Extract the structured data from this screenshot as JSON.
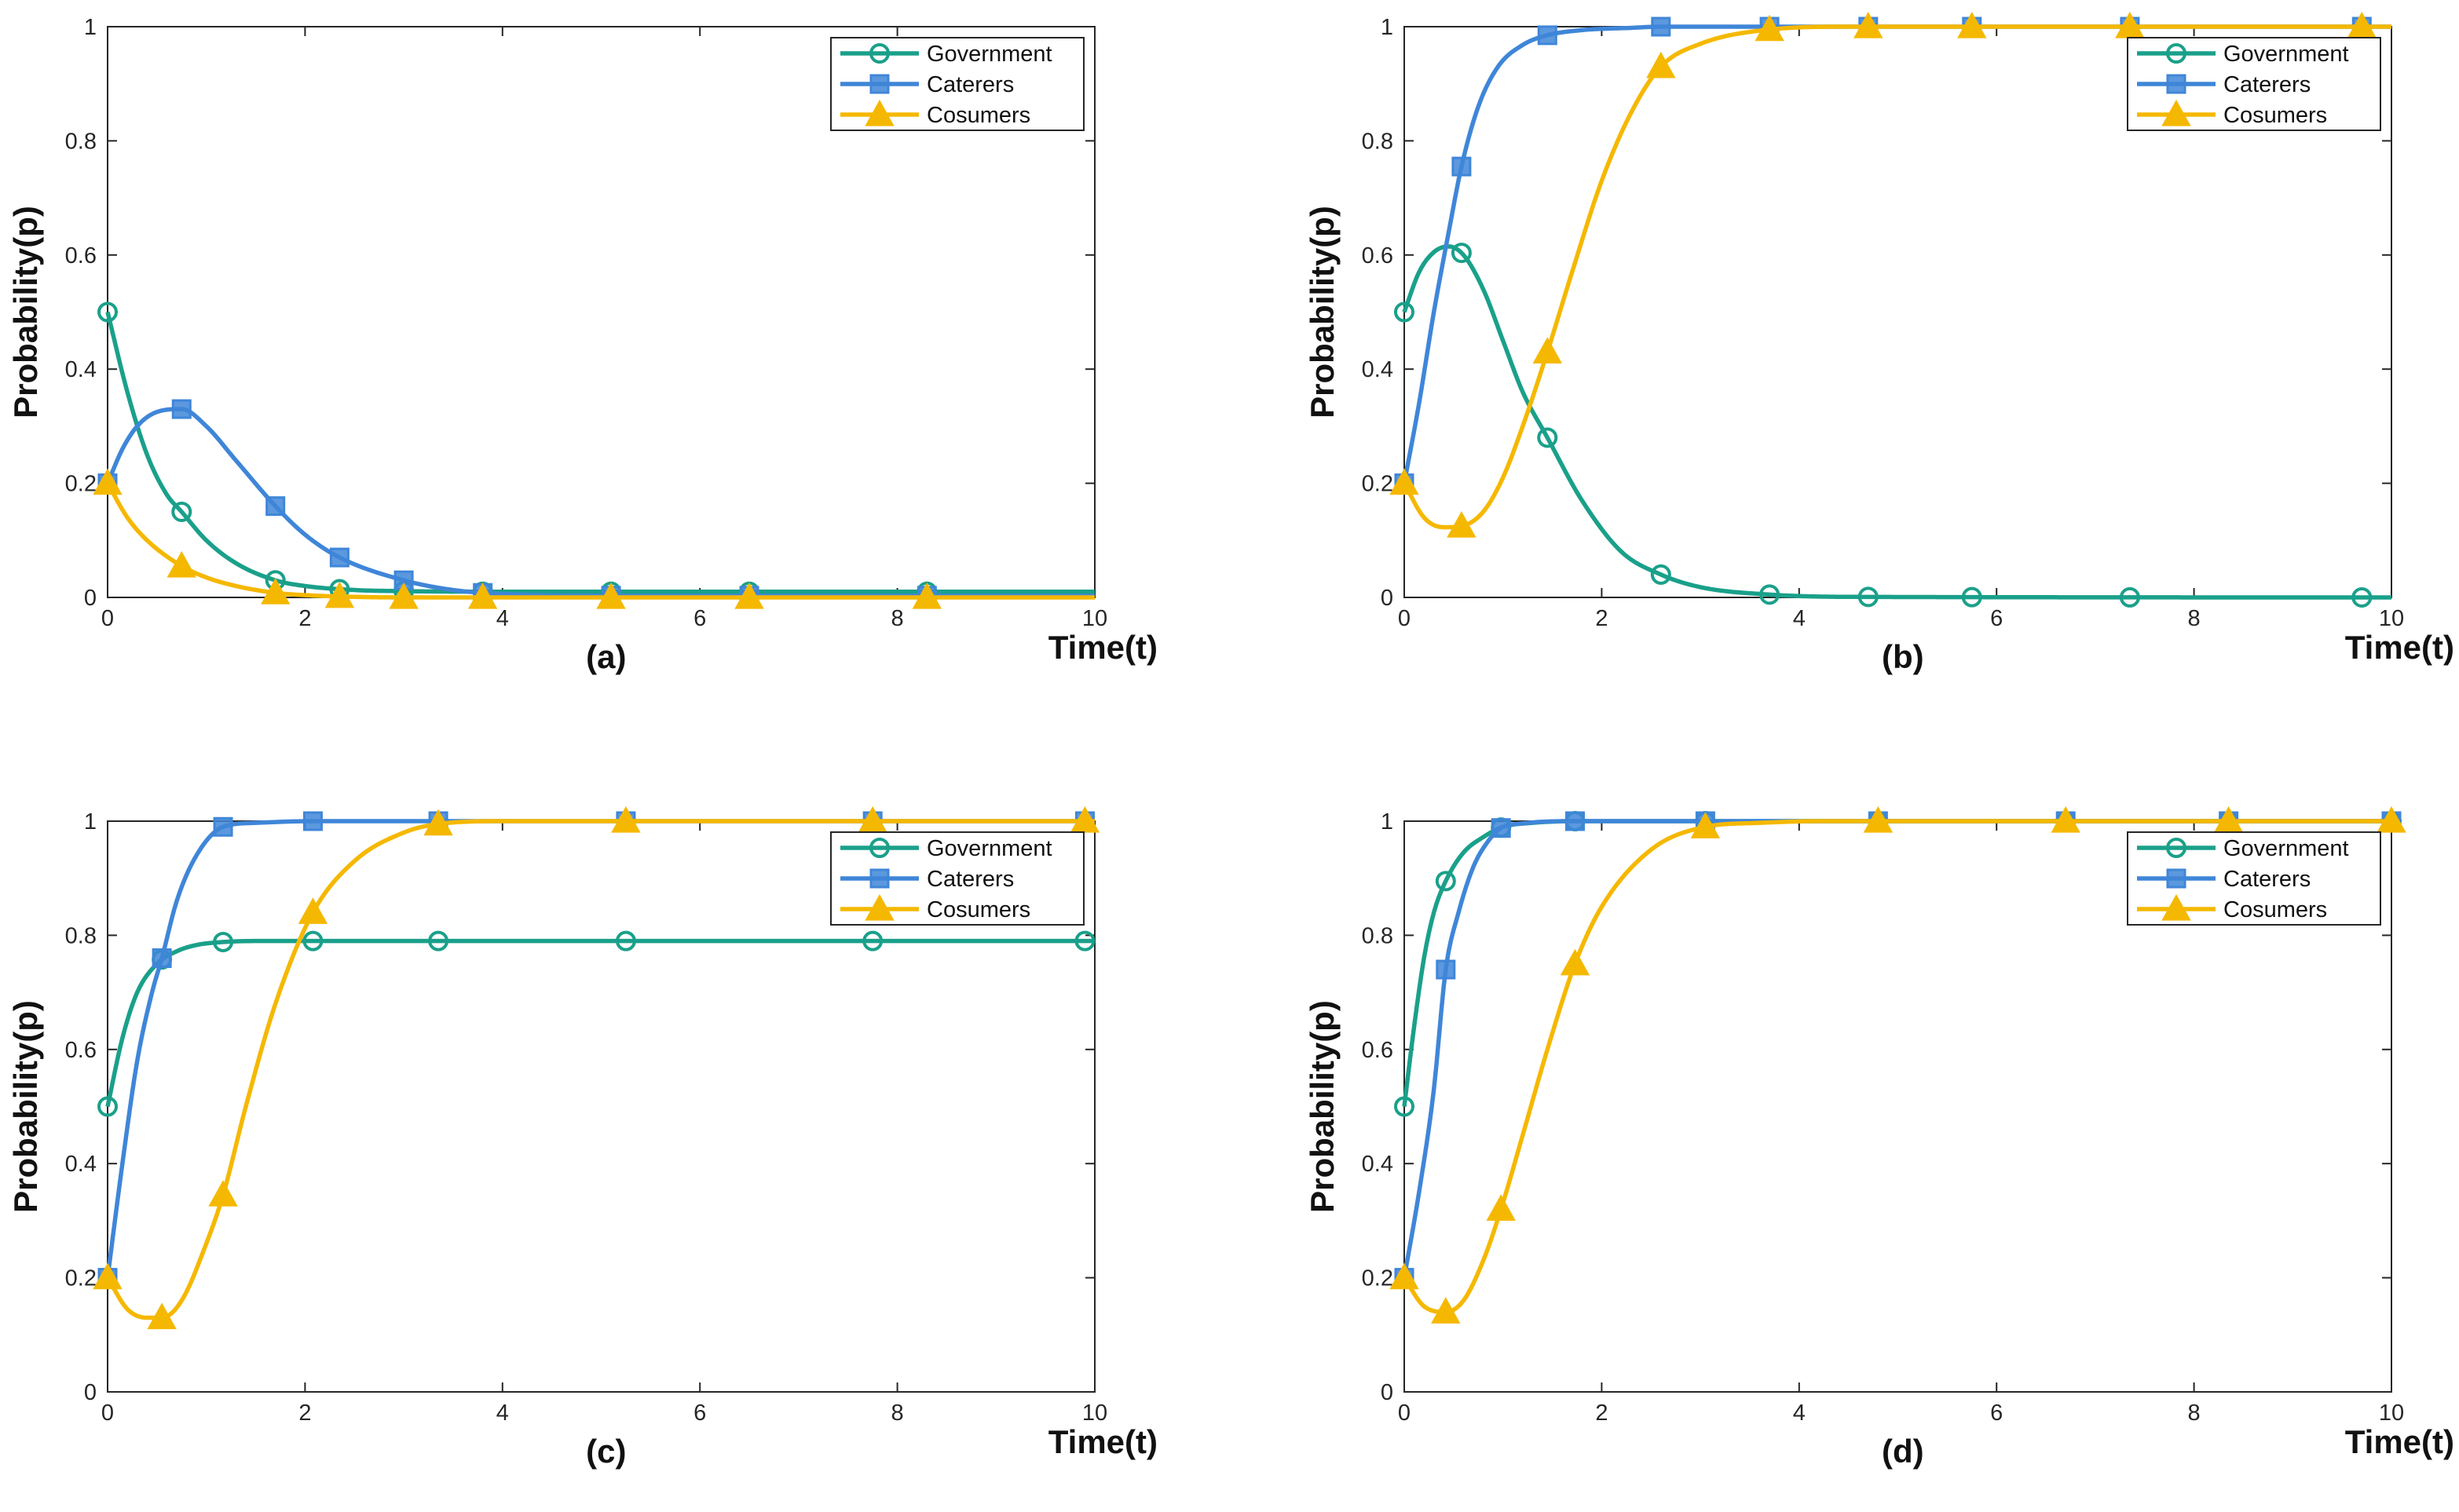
{
  "figure": {
    "caption_style": "four-panel replicator dynamics"
  },
  "colors": {
    "government": "#1aa08a",
    "caterers": "#3f86d8",
    "consumers": "#f5b800",
    "axis": "#262626"
  },
  "chart_data": [
    {
      "panel_label": "(a)",
      "type": "line",
      "xlabel": "Time(t)",
      "ylabel": "Probability(p)",
      "xlim": [
        0,
        10
      ],
      "ylim": [
        0,
        1
      ],
      "xticks": [
        "0",
        "2",
        "4",
        "6",
        "8",
        "10"
      ],
      "yticks": [
        "0",
        "0.2",
        "0.4",
        "0.6",
        "0.8",
        "1"
      ],
      "legend": [
        "Government",
        "Caterers",
        "Cosumers"
      ],
      "legend_position": "top-right",
      "series": [
        {
          "name": "Government",
          "marker": "circle",
          "color": "#1aa08a",
          "x": [
            0,
            0.2,
            0.4,
            0.6,
            0.75,
            1.0,
            1.3,
            1.7,
            2.0,
            2.5,
            3.0,
            4.0,
            5.0,
            6.5,
            8.3,
            10
          ],
          "y": [
            0.5,
            0.36,
            0.25,
            0.18,
            0.15,
            0.1,
            0.06,
            0.03,
            0.02,
            0.013,
            0.011,
            0.01,
            0.01,
            0.01,
            0.01,
            0.01
          ],
          "marker_x": [
            0,
            0.75,
            1.7,
            2.35,
            3.0,
            3.8,
            5.1,
            6.5,
            8.3
          ]
        },
        {
          "name": "Caterers",
          "marker": "square",
          "color": "#3f86d8",
          "x": [
            0,
            0.15,
            0.3,
            0.5,
            0.75,
            1.0,
            1.3,
            1.7,
            2.0,
            2.35,
            3.0,
            3.5,
            4.0,
            5.0,
            10
          ],
          "y": [
            0.2,
            0.26,
            0.3,
            0.325,
            0.33,
            0.3,
            0.24,
            0.16,
            0.11,
            0.07,
            0.03,
            0.013,
            0.006,
            0.003,
            0.003
          ],
          "marker_x": [
            0,
            0.75,
            1.7,
            2.35,
            3.0,
            3.8,
            5.1,
            6.5,
            8.3
          ]
        },
        {
          "name": "Cosumers",
          "marker": "triangle",
          "color": "#f5b800",
          "x": [
            0,
            0.2,
            0.4,
            0.75,
            1.0,
            1.3,
            1.7,
            2.0,
            2.5,
            3.0,
            10
          ],
          "y": [
            0.2,
            0.14,
            0.1,
            0.055,
            0.035,
            0.02,
            0.008,
            0.004,
            0.001,
            0.0,
            0.0
          ],
          "marker_x": [
            0,
            0.75,
            1.7,
            2.35,
            3.0,
            3.8,
            5.1,
            6.5,
            8.3
          ]
        }
      ]
    },
    {
      "panel_label": "(b)",
      "type": "line",
      "xlabel": "Time(t)",
      "ylabel": "Probability(p)",
      "xlim": [
        0,
        10
      ],
      "ylim": [
        0,
        1
      ],
      "xticks": [
        "0",
        "2",
        "4",
        "6",
        "8",
        "10"
      ],
      "yticks": [
        "0",
        "0.2",
        "0.4",
        "0.6",
        "0.8",
        "1"
      ],
      "legend": [
        "Government",
        "Caterers",
        "Cosumers"
      ],
      "legend_position": "top-right",
      "series": [
        {
          "name": "Government",
          "marker": "circle",
          "color": "#1aa08a",
          "x": [
            0,
            0.15,
            0.3,
            0.45,
            0.6,
            0.8,
            1.0,
            1.2,
            1.45,
            1.8,
            2.2,
            2.6,
            3.0,
            3.7,
            4.5,
            10
          ],
          "y": [
            0.5,
            0.57,
            0.605,
            0.615,
            0.6,
            0.54,
            0.45,
            0.36,
            0.28,
            0.17,
            0.08,
            0.04,
            0.018,
            0.005,
            0.001,
            0.0
          ],
          "marker_x": [
            0,
            0.58,
            1.45,
            2.6,
            3.7,
            4.7,
            5.75,
            7.35,
            9.7
          ]
        },
        {
          "name": "Caterers",
          "marker": "square",
          "color": "#3f86d8",
          "x": [
            0,
            0.15,
            0.3,
            0.45,
            0.58,
            0.75,
            0.95,
            1.2,
            1.45,
            1.8,
            2.3,
            2.6,
            10
          ],
          "y": [
            0.2,
            0.34,
            0.5,
            0.64,
            0.755,
            0.86,
            0.93,
            0.968,
            0.985,
            0.994,
            0.998,
            1.0,
            1.0
          ],
          "marker_x": [
            0,
            0.58,
            1.45,
            2.6,
            3.7,
            4.7,
            5.75,
            7.35,
            9.7
          ]
        },
        {
          "name": "Cosumers",
          "marker": "triangle",
          "color": "#f5b800",
          "x": [
            0,
            0.2,
            0.4,
            0.58,
            0.8,
            1.0,
            1.2,
            1.45,
            1.7,
            2.0,
            2.3,
            2.6,
            3.0,
            3.7,
            4.5,
            10
          ],
          "y": [
            0.2,
            0.14,
            0.123,
            0.125,
            0.15,
            0.21,
            0.3,
            0.43,
            0.57,
            0.73,
            0.85,
            0.93,
            0.97,
            0.995,
            1.0,
            1.0
          ],
          "marker_x": [
            0,
            0.58,
            1.45,
            2.6,
            3.7,
            4.7,
            5.75,
            7.35,
            9.7
          ]
        }
      ]
    },
    {
      "panel_label": "(c)",
      "type": "line",
      "xlabel": "Time(t)",
      "ylabel": "Probability(p)",
      "xlim": [
        0,
        10
      ],
      "ylim": [
        0,
        1
      ],
      "xticks": [
        "0",
        "2",
        "4",
        "6",
        "8",
        "10"
      ],
      "yticks": [
        "0",
        "0.2",
        "0.4",
        "0.6",
        "0.8",
        "1"
      ],
      "legend": [
        "Government",
        "Caterers",
        "Cosumers"
      ],
      "legend_position": "right",
      "series": [
        {
          "name": "Government",
          "marker": "circle",
          "color": "#1aa08a",
          "x": [
            0,
            0.15,
            0.3,
            0.5,
            0.7,
            0.9,
            1.15,
            1.5,
            2.0,
            10
          ],
          "y": [
            0.5,
            0.62,
            0.7,
            0.75,
            0.772,
            0.783,
            0.788,
            0.79,
            0.79,
            0.79
          ],
          "marker_x": [
            0,
            0.55,
            1.17,
            2.08,
            3.35,
            5.25,
            7.75,
            9.9
          ]
        },
        {
          "name": "Caterers",
          "marker": "square",
          "color": "#3f86d8",
          "x": [
            0,
            0.15,
            0.3,
            0.45,
            0.55,
            0.7,
            0.9,
            1.17,
            1.5,
            2.08,
            10
          ],
          "y": [
            0.2,
            0.4,
            0.58,
            0.7,
            0.76,
            0.86,
            0.94,
            0.99,
            0.997,
            1.0,
            1.0
          ],
          "marker_x": [
            0,
            0.55,
            1.17,
            2.08,
            3.35,
            5.25,
            7.75,
            9.9
          ]
        },
        {
          "name": "Cosumers",
          "marker": "triangle",
          "color": "#f5b800",
          "x": [
            0,
            0.2,
            0.4,
            0.55,
            0.75,
            1.0,
            1.17,
            1.4,
            1.7,
            2.08,
            2.5,
            3.0,
            3.35,
            4.0,
            10
          ],
          "y": [
            0.2,
            0.145,
            0.13,
            0.13,
            0.16,
            0.26,
            0.345,
            0.5,
            0.68,
            0.84,
            0.93,
            0.98,
            0.995,
            1.0,
            1.0
          ],
          "marker_x": [
            0,
            0.55,
            1.17,
            2.08,
            3.35,
            5.25,
            7.75,
            9.9
          ]
        }
      ]
    },
    {
      "panel_label": "(d)",
      "type": "line",
      "xlabel": "Time(t)",
      "ylabel": "Probability(p)",
      "xlim": [
        0,
        10
      ],
      "ylim": [
        0,
        1
      ],
      "xticks": [
        "0",
        "2",
        "4",
        "6",
        "8",
        "10"
      ],
      "yticks": [
        "0",
        "0.2",
        "0.4",
        "0.6",
        "0.8",
        "1"
      ],
      "legend": [
        "Government",
        "Caterers",
        "Cosumers"
      ],
      "legend_position": "top-right",
      "series": [
        {
          "name": "Government",
          "marker": "circle",
          "color": "#1aa08a",
          "x": [
            0,
            0.1,
            0.2,
            0.3,
            0.42,
            0.6,
            0.8,
            1.0,
            1.3,
            1.73,
            10
          ],
          "y": [
            0.5,
            0.64,
            0.76,
            0.84,
            0.895,
            0.945,
            0.972,
            0.99,
            0.997,
            1.0,
            1.0
          ],
          "marker_x": [
            0,
            0.42,
            0.98,
            1.73,
            3.05,
            4.8,
            6.7,
            8.35,
            10
          ]
        },
        {
          "name": "Caterers",
          "marker": "square",
          "color": "#3f86d8",
          "x": [
            0,
            0.15,
            0.3,
            0.42,
            0.55,
            0.7,
            0.85,
            0.98,
            1.2,
            1.73,
            10
          ],
          "y": [
            0.2,
            0.35,
            0.53,
            0.74,
            0.84,
            0.92,
            0.965,
            0.988,
            0.996,
            1.0,
            1.0
          ],
          "marker_x": [
            0,
            0.42,
            0.98,
            1.73,
            3.05,
            4.8,
            6.7,
            8.35,
            10
          ]
        },
        {
          "name": "Cosumers",
          "marker": "triangle",
          "color": "#f5b800",
          "x": [
            0,
            0.2,
            0.42,
            0.6,
            0.8,
            0.98,
            1.2,
            1.45,
            1.73,
            2.0,
            2.5,
            3.05,
            3.6,
            4.2,
            10
          ],
          "y": [
            0.2,
            0.15,
            0.14,
            0.16,
            0.23,
            0.32,
            0.45,
            0.6,
            0.75,
            0.85,
            0.95,
            0.99,
            0.997,
            1.0,
            1.0
          ],
          "marker_x": [
            0,
            0.42,
            0.98,
            1.73,
            3.05,
            4.8,
            6.7,
            8.35,
            10
          ]
        }
      ]
    }
  ]
}
